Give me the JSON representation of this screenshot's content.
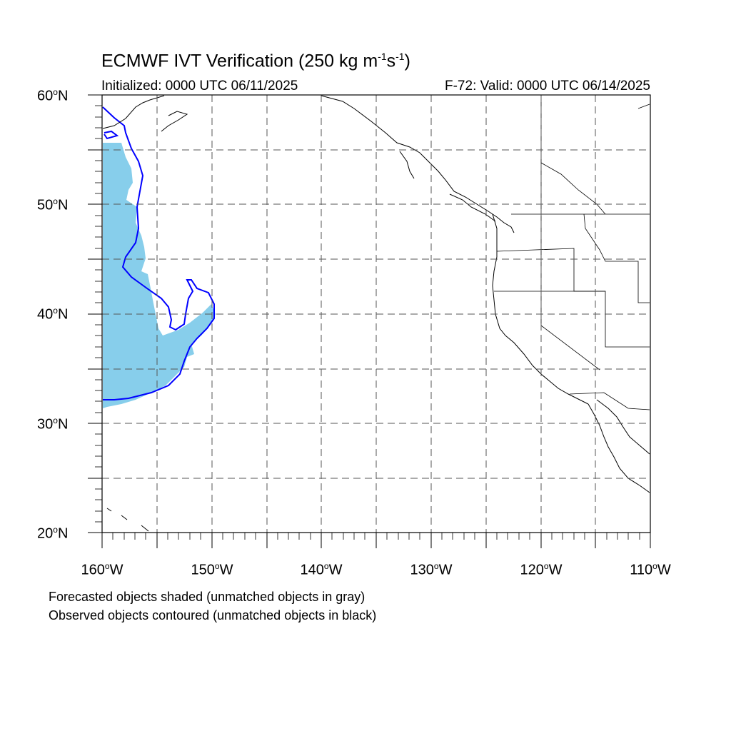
{
  "title": {
    "main": "ECMWF IVT Verification (250 kg m",
    "exp1": "-1",
    "mid": "s",
    "exp2": "-1",
    "end": ")"
  },
  "initialized": "Initialized: 0000 UTC 06/11/2025",
  "valid": "F-72: Valid: 0000 UTC 06/14/2025",
  "lat_labels": [
    {
      "num": "60",
      "deg": "o",
      "hem": "N"
    },
    {
      "num": "50",
      "deg": "o",
      "hem": "N"
    },
    {
      "num": "40",
      "deg": "o",
      "hem": "N"
    },
    {
      "num": "30",
      "deg": "o",
      "hem": "N"
    },
    {
      "num": "20",
      "deg": "o",
      "hem": "N"
    }
  ],
  "lon_labels": [
    {
      "num": "160",
      "deg": "o",
      "hem": "W"
    },
    {
      "num": "150",
      "deg": "o",
      "hem": "W"
    },
    {
      "num": "140",
      "deg": "o",
      "hem": "W"
    },
    {
      "num": "130",
      "deg": "o",
      "hem": "W"
    },
    {
      "num": "120",
      "deg": "o",
      "hem": "W"
    },
    {
      "num": "110",
      "deg": "o",
      "hem": "W"
    }
  ],
  "notes": [
    "Forecasted objects shaded (unmatched objects in gray)",
    "Observed objects contoured (unmatched objects in black)"
  ],
  "colors": {
    "forecast_fill": "#87ceeb",
    "observed_contour": "#0000ff",
    "coastline": "#000000",
    "grid": "#555555"
  },
  "map_extent": {
    "lon": [
      -160,
      -110
    ],
    "lat": [
      20,
      60
    ]
  }
}
